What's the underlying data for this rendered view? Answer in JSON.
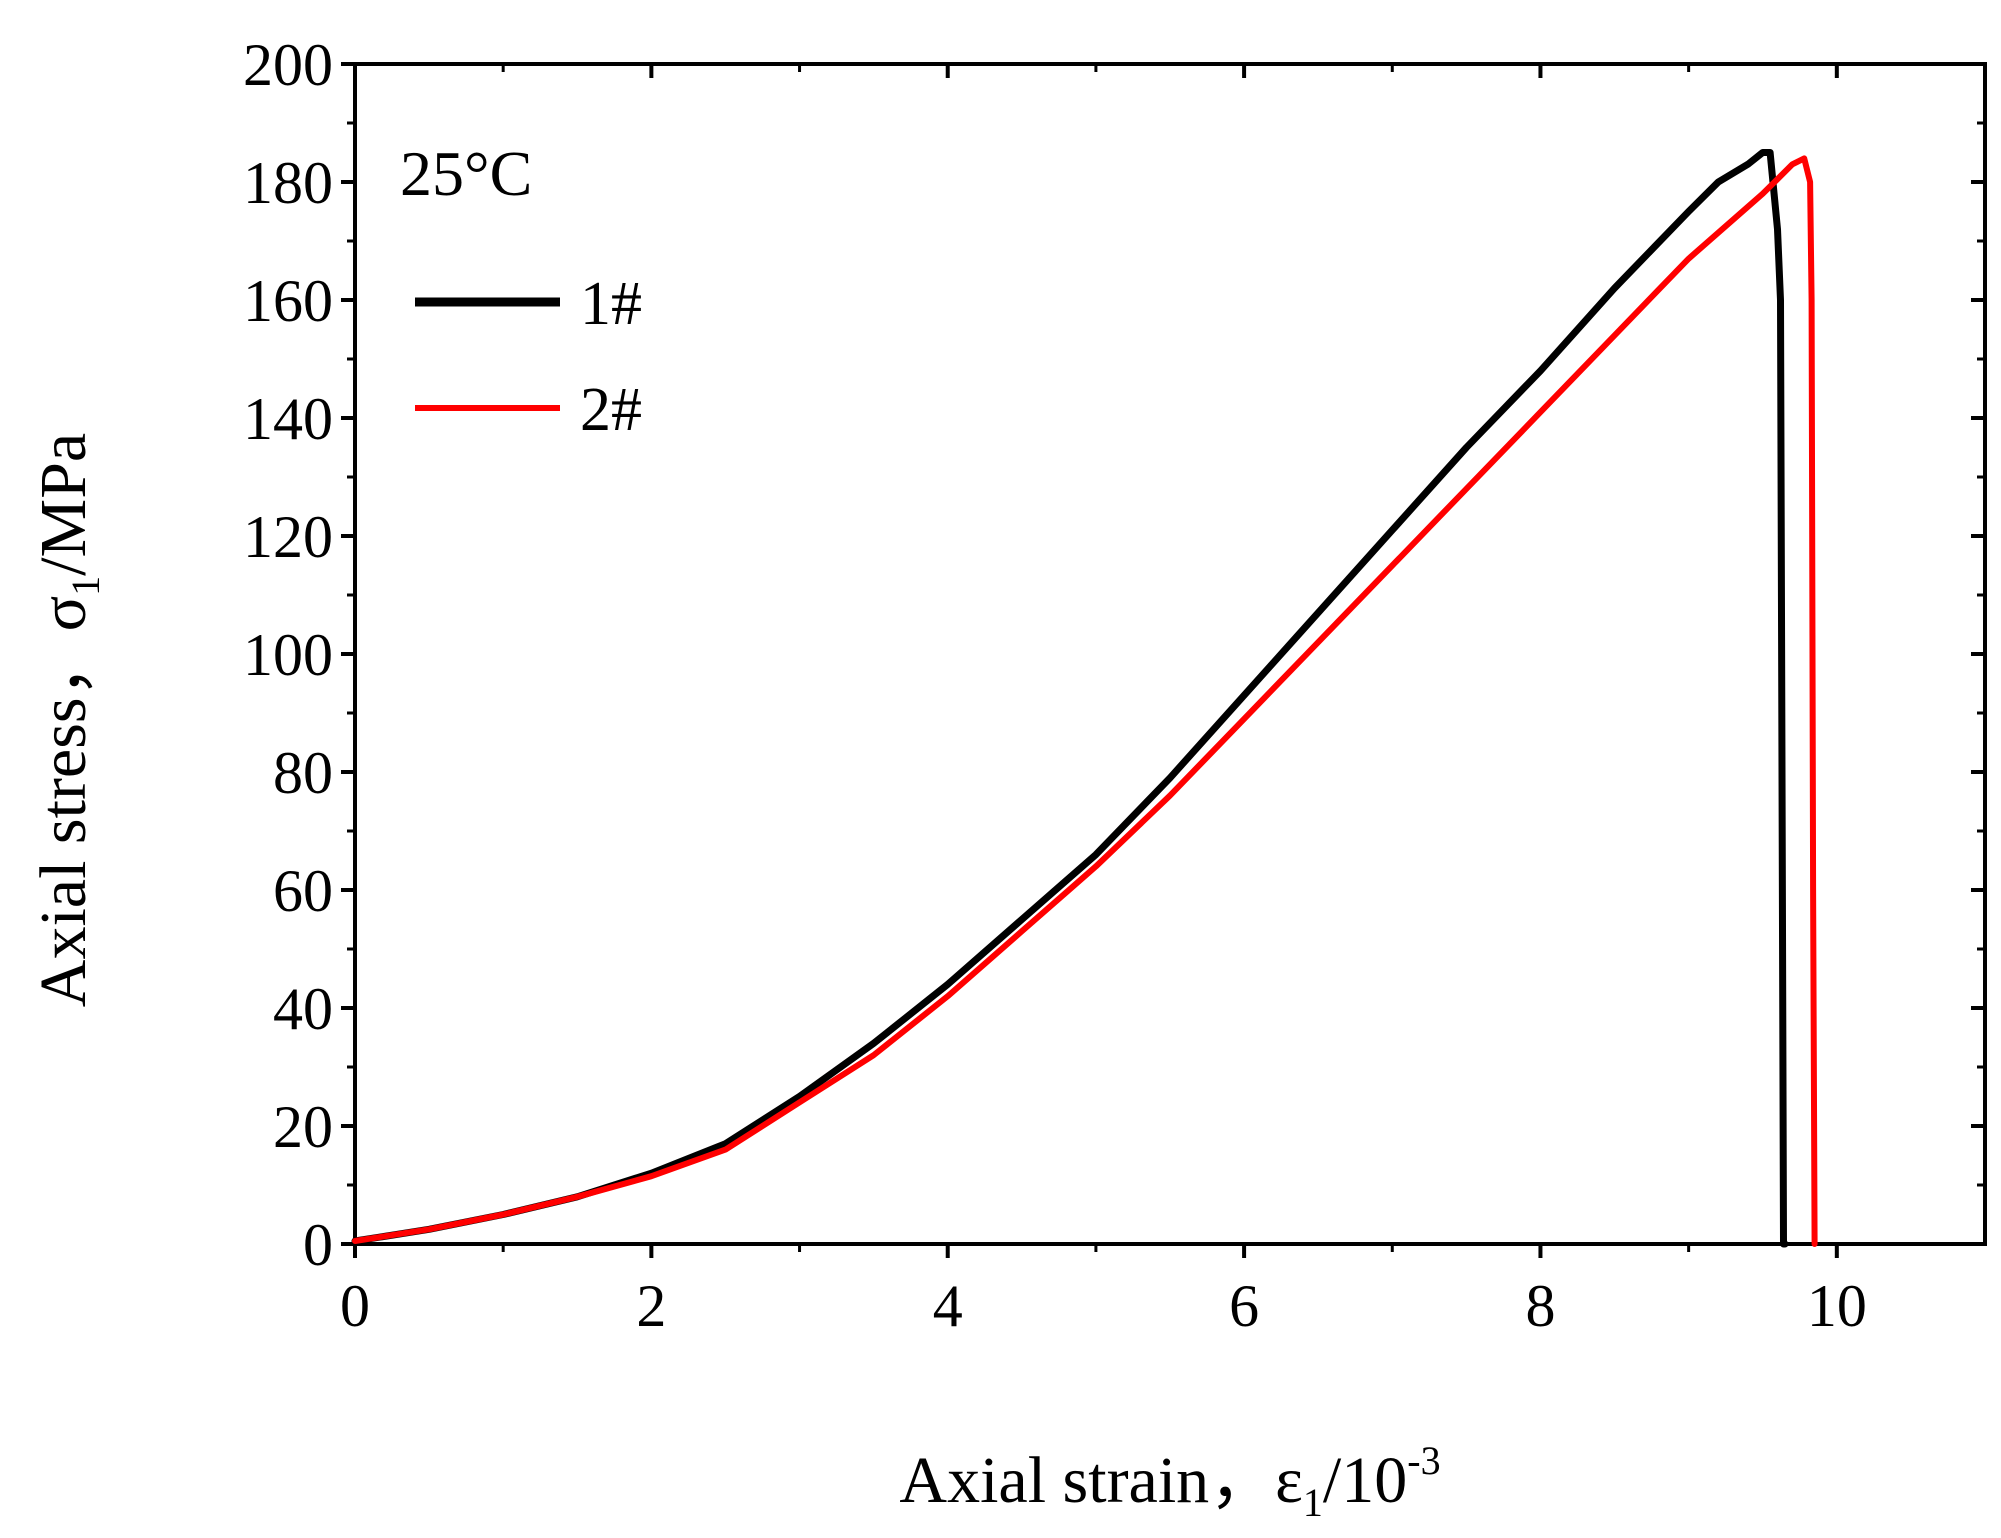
{
  "chart_data": {
    "type": "line",
    "xlabel_main": "Axial strain，ε",
    "xlabel_sub": "1",
    "xlabel_rest": "/10",
    "xlabel_sup": "-3",
    "ylabel_main": "Axial stress，σ",
    "ylabel_sub": "1",
    "ylabel_rest": "/MPa",
    "annotation": "25°C",
    "xlim": [
      0,
      11
    ],
    "ylim": [
      0,
      200
    ],
    "x_ticks": [
      0,
      2,
      4,
      6,
      8,
      10
    ],
    "x_tick_labels": [
      "0",
      "2",
      "4",
      "6",
      "8",
      "10"
    ],
    "y_ticks": [
      0,
      20,
      40,
      60,
      80,
      100,
      120,
      140,
      160,
      180,
      200
    ],
    "y_tick_labels": [
      "0",
      "20",
      "40",
      "60",
      "80",
      "100",
      "120",
      "140",
      "160",
      "180",
      "200"
    ],
    "grid": false,
    "legend_position": "top-left",
    "series": [
      {
        "name": "1#",
        "color": "#000000",
        "x": [
          0,
          0.5,
          1.0,
          1.5,
          2.0,
          2.5,
          3.0,
          3.5,
          4.0,
          4.5,
          5.0,
          5.5,
          6.0,
          6.5,
          7.0,
          7.5,
          8.0,
          8.5,
          9.0,
          9.2,
          9.4,
          9.5,
          9.55,
          9.6,
          9.62,
          9.64,
          9.65
        ],
        "y": [
          0.5,
          2.5,
          5,
          8,
          12,
          17,
          25,
          34,
          44,
          55,
          66,
          79,
          93,
          107,
          121,
          135,
          148,
          162,
          175,
          180,
          183,
          185,
          185,
          172,
          160,
          0,
          0
        ]
      },
      {
        "name": "2#",
        "color": "#ff0000",
        "x": [
          0,
          0.5,
          1.0,
          1.5,
          2.0,
          2.5,
          3.0,
          3.5,
          4.0,
          4.5,
          5.0,
          5.5,
          6.0,
          6.5,
          7.0,
          7.5,
          8.0,
          8.5,
          9.0,
          9.5,
          9.7,
          9.78,
          9.82,
          9.83,
          9.84,
          9.85
        ],
        "y": [
          0.5,
          2.5,
          5,
          8,
          11.5,
          16,
          24,
          32,
          42,
          53,
          64,
          76,
          89,
          102,
          115,
          128,
          141,
          154,
          167,
          178,
          183,
          184,
          180,
          160,
          60,
          0
        ]
      }
    ]
  }
}
